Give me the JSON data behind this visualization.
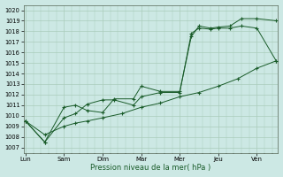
{
  "background_color": "#cce8e4",
  "plot_bg": "#cce8e4",
  "grid_color": "#aaccbb",
  "line_color": "#1a5c2a",
  "xlabel": "Pression niveau de la mer( hPa )",
  "ylim": [
    1006.5,
    1020.5
  ],
  "yticks": [
    1007,
    1008,
    1009,
    1010,
    1011,
    1012,
    1013,
    1014,
    1015,
    1016,
    1017,
    1018,
    1019,
    1020
  ],
  "x_labels": [
    "Lun",
    "Sam",
    "Dim",
    "Mar",
    "Mer",
    "Jeu",
    "Ven"
  ],
  "x_major_positions": [
    0,
    1,
    2,
    3,
    4,
    5,
    6
  ],
  "xlim": [
    -0.05,
    6.55
  ],
  "series1_x": [
    0.0,
    0.5,
    1.0,
    1.3,
    1.6,
    2.0,
    2.3,
    2.8,
    3.0,
    3.5,
    4.0,
    4.3,
    4.5,
    4.8,
    5.0,
    5.3,
    5.6,
    6.0,
    6.5
  ],
  "series1_y": [
    1009.5,
    1007.5,
    1010.8,
    1011.0,
    1010.5,
    1010.3,
    1011.6,
    1011.6,
    1012.8,
    1012.3,
    1012.3,
    1017.5,
    1018.5,
    1018.3,
    1018.4,
    1018.5,
    1019.2,
    1019.2,
    1019.0
  ],
  "series2_x": [
    0.0,
    0.5,
    1.0,
    1.3,
    1.6,
    2.0,
    2.3,
    2.8,
    3.0,
    3.5,
    4.0,
    4.3,
    4.5,
    4.8,
    5.0,
    5.3,
    5.6,
    6.0,
    6.5
  ],
  "series2_y": [
    1009.5,
    1007.5,
    1009.8,
    1010.2,
    1011.1,
    1011.5,
    1011.5,
    1011.0,
    1011.8,
    1012.2,
    1012.2,
    1017.8,
    1018.3,
    1018.2,
    1018.3,
    1018.3,
    1018.5,
    1018.3,
    1015.2
  ],
  "series3_x": [
    0.0,
    0.5,
    1.0,
    1.3,
    1.6,
    2.0,
    2.5,
    3.0,
    3.5,
    4.0,
    4.5,
    5.0,
    5.5,
    6.0,
    6.5
  ],
  "series3_y": [
    1009.5,
    1008.2,
    1009.0,
    1009.3,
    1009.5,
    1009.8,
    1010.2,
    1010.8,
    1011.2,
    1011.8,
    1012.2,
    1012.8,
    1013.5,
    1014.5,
    1015.2
  ]
}
